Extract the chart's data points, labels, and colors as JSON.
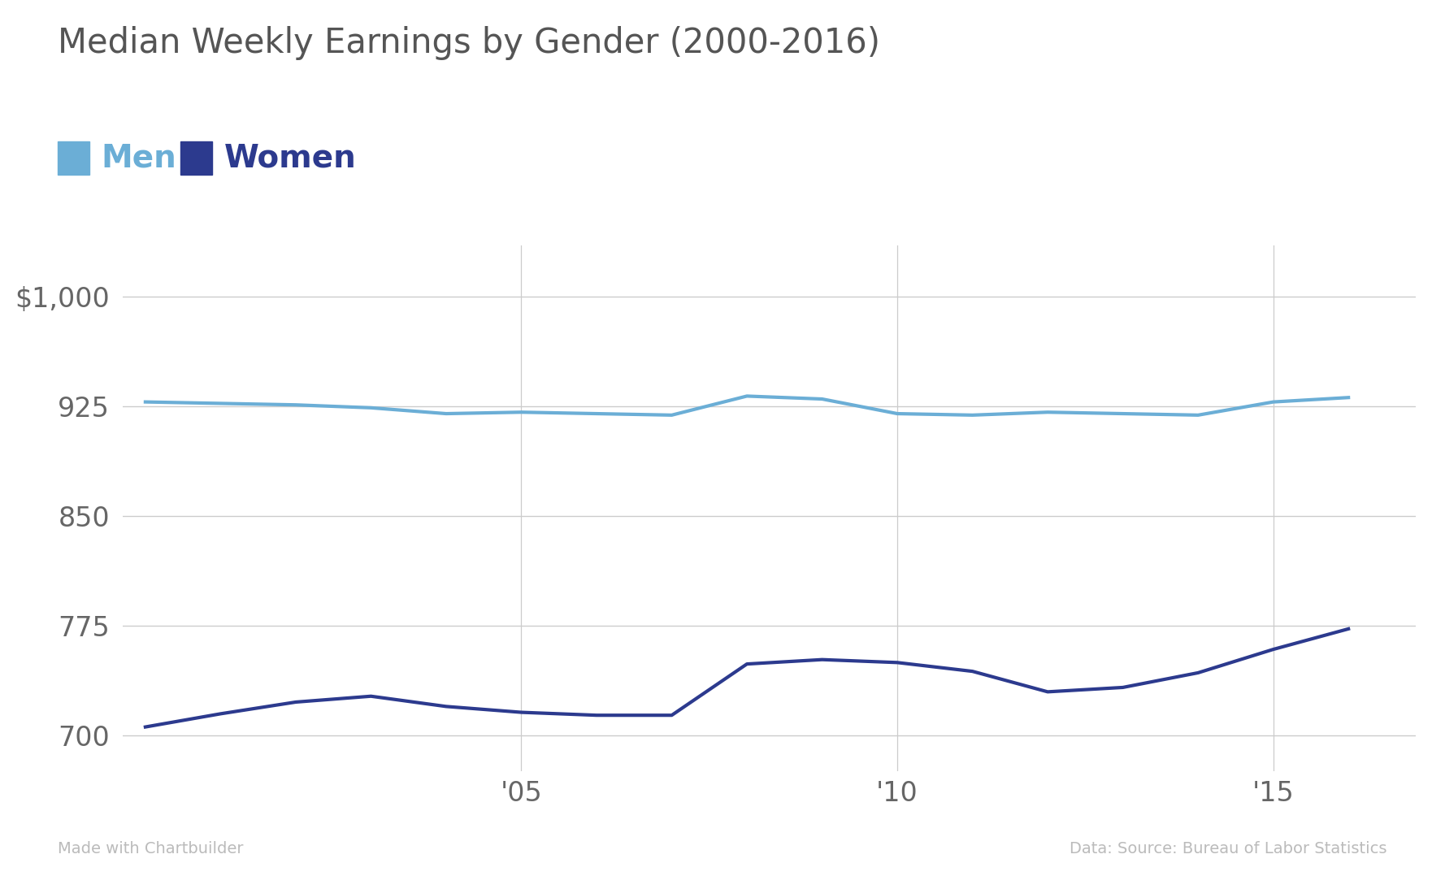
{
  "title": "Median Weekly Earnings by Gender (2000-2016)",
  "years": [
    2000,
    2001,
    2002,
    2003,
    2004,
    2005,
    2006,
    2007,
    2008,
    2009,
    2010,
    2011,
    2012,
    2013,
    2014,
    2015,
    2016
  ],
  "men": [
    928,
    927,
    926,
    924,
    920,
    921,
    920,
    919,
    932,
    930,
    920,
    919,
    921,
    920,
    919,
    928,
    931
  ],
  "women": [
    706,
    715,
    723,
    727,
    720,
    716,
    714,
    714,
    749,
    752,
    750,
    744,
    730,
    733,
    743,
    759,
    773
  ],
  "men_color": "#6baed6",
  "women_color": "#2c3a8e",
  "yticks": [
    700,
    775,
    850,
    925,
    1000
  ],
  "ylim": [
    676,
    1035
  ],
  "xlim": [
    1999.7,
    2016.9
  ],
  "xtick_positions": [
    2005,
    2010,
    2015
  ],
  "xtick_labels": [
    "'05",
    "'10",
    "'15"
  ],
  "legend_men": "Men",
  "legend_women": "Women",
  "footer_left": "Made with Chartbuilder",
  "footer_right": "Data: Source: Bureau of Labor Statistics",
  "background_color": "#ffffff",
  "grid_color": "#cccccc",
  "title_color": "#555555",
  "tick_color": "#666666",
  "line_width": 3.0,
  "title_fontsize": 30,
  "legend_fontsize": 28,
  "tick_fontsize": 24,
  "footer_fontsize": 14
}
